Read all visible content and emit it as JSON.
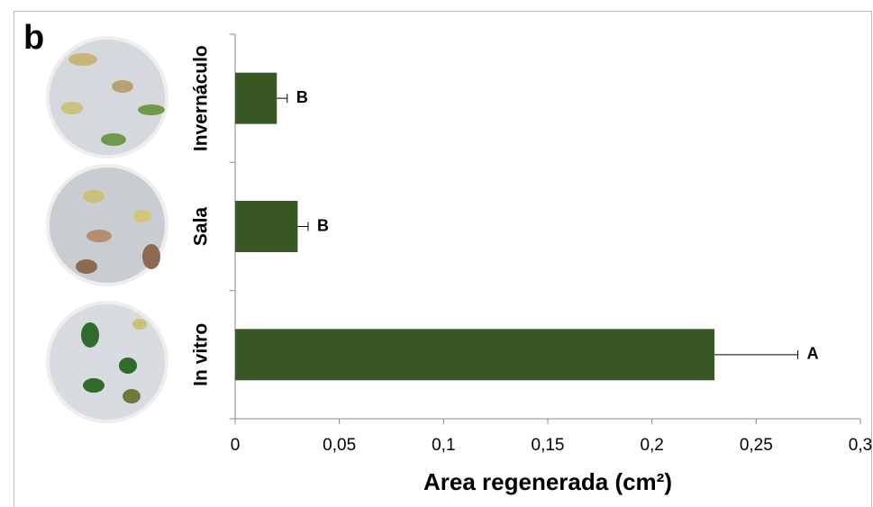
{
  "chart_data": {
    "type": "bar",
    "orientation": "horizontal",
    "panel_label": "b",
    "categories": [
      "Invernáculo",
      "Sala",
      "In vitro"
    ],
    "values": [
      0.02,
      0.03,
      0.23
    ],
    "errors": [
      0.005,
      0.005,
      0.04
    ],
    "significance_labels": [
      "B",
      "B",
      "A"
    ],
    "color": "#385723",
    "xlabel": "Area regenerada (cm²)",
    "xlim": [
      0,
      0.3
    ],
    "xticks": [
      0,
      {
        "value": 0.05,
        "label": "0,05"
      },
      {
        "value": 0.1,
        "label": "0,1"
      },
      {
        "value": 0.15,
        "label": "0,15"
      },
      {
        "value": 0.2,
        "label": "0,2"
      },
      {
        "value": 0.25,
        "label": "0,25"
      },
      {
        "value": 0.3,
        "label": "0,3"
      }
    ],
    "grid": false
  }
}
